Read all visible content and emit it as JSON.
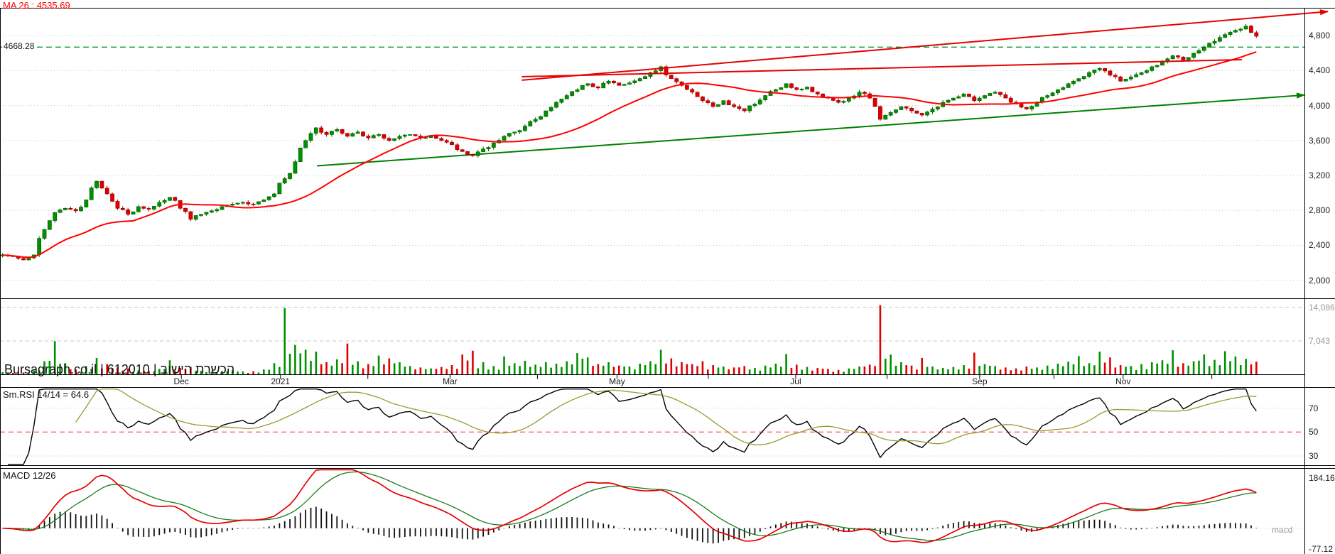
{
  "watermark": "Bursagraph.co.il | 612010 | הכשרת הישוב",
  "colors": {
    "up": "#009000",
    "up_edge": "#005c00",
    "down": "#dd0000",
    "down_edge": "#990000",
    "ma": "#ff0000",
    "grid": "#c8c8c8",
    "level": "#009933",
    "trend_red": "#e60000",
    "trend_green": "#008000",
    "rsi": "#000000",
    "rsi_smooth": "#9a9a30",
    "rsi_mid": "#ff6666",
    "macd_line": "#e60000",
    "macd_signal": "#1a7a1a",
    "hist": "#111111",
    "border": "#000000"
  },
  "chart_data": {
    "type": "candlestick",
    "x_axis": {
      "labels": [
        {
          "text": "Dec",
          "f": 0.139
        },
        {
          "text": "2021",
          "f": 0.215
        },
        {
          "text": "Mar",
          "f": 0.345
        },
        {
          "text": "May",
          "f": 0.473
        },
        {
          "text": "Jul",
          "f": 0.61
        },
        {
          "text": "Sep",
          "f": 0.751
        },
        {
          "text": "Nov",
          "f": 0.861
        }
      ],
      "ticks": [
        0.139,
        0.215,
        0.282,
        0.345,
        0.412,
        0.473,
        0.543,
        0.61,
        0.68,
        0.751,
        0.808,
        0.861,
        0.929
      ]
    },
    "panels": {
      "price": {
        "ma_label": "MA 26 : 4535.69",
        "ma_window": 26,
        "ylim": [
          1790,
          5110
        ],
        "y_ticks": [
          {
            "text": "4,800",
            "value": 4800
          },
          {
            "text": "4,400",
            "value": 4400
          },
          {
            "text": "4,000",
            "value": 4000
          },
          {
            "text": "3,600",
            "value": 3600
          },
          {
            "text": "3,200",
            "value": 3200
          },
          {
            "text": "2,800",
            "value": 2800
          },
          {
            "text": "2,400",
            "value": 2400
          },
          {
            "text": "2,000",
            "value": 2000
          }
        ],
        "level_line": {
          "value": 4668.28,
          "label": "4668.28"
        },
        "trendlines": [
          {
            "x1": 0.4,
            "v1": 4290,
            "x2": 1.018,
            "v2": 5075,
            "color": "#e60000",
            "width": 2,
            "arrow": true
          },
          {
            "x1": 0.4,
            "v1": 4330,
            "x2": 0.952,
            "v2": 4525,
            "color": "#e60000",
            "width": 2,
            "arrow": false
          },
          {
            "x1": 0.243,
            "v1": 3310,
            "x2": 1.0,
            "v2": 4120,
            "color": "#008000",
            "width": 2,
            "arrow": true
          }
        ],
        "closes": [
          2290,
          2271,
          2233,
          2291,
          2582,
          2776,
          2824,
          2795,
          2921,
          3134,
          2989,
          2824,
          2756,
          2843,
          2814,
          2892,
          2950,
          2824,
          2698,
          2756,
          2795,
          2843,
          2872,
          2892,
          2872,
          2921,
          2989,
          3163,
          3357,
          3600,
          3745,
          3668,
          3726,
          3648,
          3697,
          3629,
          3668,
          3600,
          3648,
          3668,
          3629,
          3648,
          3600,
          3551,
          3474,
          3425,
          3503,
          3571,
          3648,
          3697,
          3765,
          3842,
          3939,
          4036,
          4114,
          4182,
          4250,
          4201,
          4279,
          4230,
          4259,
          4308,
          4376,
          4444,
          4308,
          4230,
          4153,
          4056,
          3988,
          4056,
          3988,
          3939,
          4017,
          4114,
          4182,
          4250,
          4182,
          4211,
          4133,
          4085,
          4036,
          4085,
          4153,
          4085,
          3842,
          3920,
          3988,
          3939,
          3891,
          3959,
          4036,
          4085,
          4133,
          4056,
          4114,
          4153,
          4085,
          4017,
          3959,
          4036,
          4114,
          4182,
          4250,
          4308,
          4376,
          4424,
          4347,
          4279,
          4327,
          4376,
          4444,
          4502,
          4570,
          4521,
          4599,
          4667,
          4735,
          4812,
          4861,
          4909,
          4793
        ]
      },
      "volume": {
        "ylim": [
          0,
          15800
        ],
        "y_ticks": [
          {
            "text": "14,086",
            "value": 14086
          },
          {
            "text": "7,043",
            "value": 7043
          }
        ],
        "values": [
          520,
          380,
          450,
          900,
          2800,
          7000,
          2400,
          1100,
          1800,
          3500,
          2200,
          1500,
          1300,
          900,
          700,
          1200,
          3000,
          1400,
          1600,
          800,
          600,
          750,
          900,
          650,
          700,
          1100,
          2400,
          13900,
          6200,
          5200,
          4800,
          2600,
          3200,
          6500,
          2800,
          2200,
          4000,
          3400,
          2600,
          1800,
          1500,
          1300,
          1600,
          2000,
          4200,
          5000,
          2600,
          1800,
          3800,
          2400,
          2900,
          2100,
          2600,
          2300,
          2800,
          4500,
          3600,
          2200,
          2600,
          1900,
          1700,
          2300,
          2800,
          5200,
          3400,
          2600,
          2200,
          2800,
          2000,
          1700,
          1500,
          1800,
          1400,
          1900,
          2300,
          4300,
          2100,
          1600,
          1400,
          1200,
          1000,
          1300,
          1700,
          2100,
          14500,
          4200,
          2600,
          1900,
          3500,
          1700,
          1400,
          1600,
          2000,
          4600,
          2200,
          1800,
          1500,
          1300,
          1700,
          1500,
          1900,
          2300,
          2700,
          3900,
          2400,
          4800,
          3600,
          2000,
          1800,
          2200,
          2600,
          3000,
          5100,
          2400,
          2800,
          4200,
          3100,
          4900,
          3800,
          3300,
          2700
        ]
      },
      "rsi": {
        "label": "Sm.RSI 14/14 = 64.6",
        "period": 14,
        "smooth": 14,
        "ylim": [
          22,
          87
        ],
        "midline": 50,
        "y_ticks": [
          {
            "text": "70",
            "value": 70
          },
          {
            "text": "50",
            "value": 50
          },
          {
            "text": "30",
            "value": 30
          }
        ]
      },
      "macd": {
        "label": "MACD 12/26",
        "axis_label": "macd",
        "fast": 12,
        "slow": 26,
        "signal": 9,
        "ylim": [
          -95,
          220
        ],
        "y_ticks": [
          {
            "text": "184.16",
            "value": 184.16
          },
          {
            "text": "-77.12",
            "value": -77.12
          }
        ]
      }
    }
  }
}
